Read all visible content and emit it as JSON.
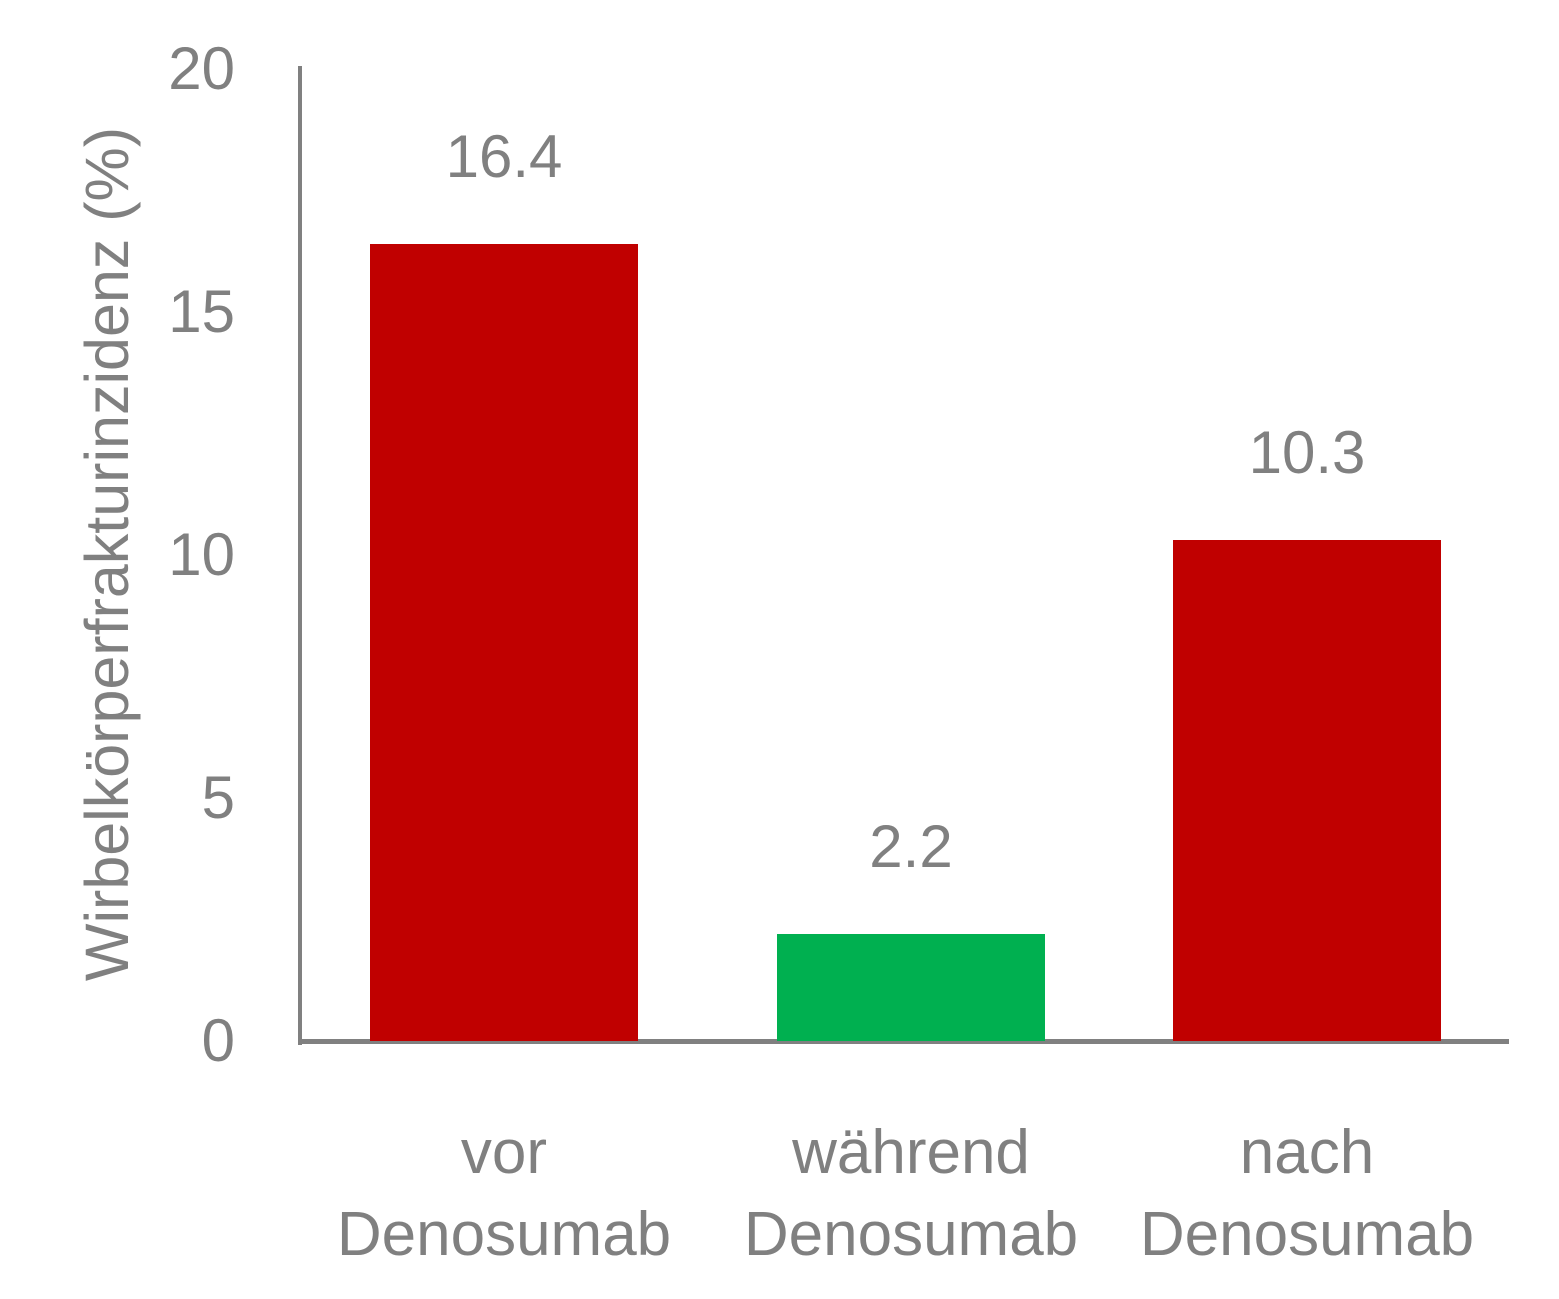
{
  "chart_data": {
    "type": "bar",
    "title": "",
    "xlabel": "",
    "ylabel": "Wirbelkörperfrakturinzidenz (%)",
    "categories": [
      "vor Denosumab",
      "während Denosumab",
      "nach Denosumab"
    ],
    "values": [
      16.4,
      2.2,
      10.3
    ],
    "value_labels": [
      "16.4",
      "2.2",
      "10.3"
    ],
    "bar_colors": [
      "#C00000",
      "#00B050",
      "#C00000"
    ],
    "ylim": [
      0,
      20
    ],
    "yticks": [
      0,
      5,
      10,
      15,
      20
    ],
    "grid": false,
    "legend": false,
    "text_color": "#808080",
    "axis_color": "#808080"
  }
}
